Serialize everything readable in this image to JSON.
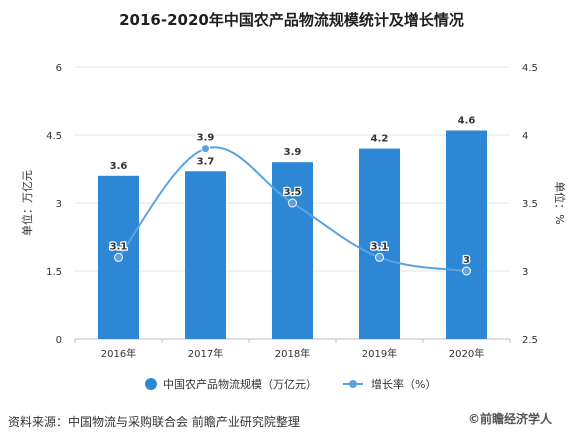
{
  "page": {
    "title": "2016-2020年中国农产品物流规模统计及增长情况",
    "source": "资料来源：中国物流与采购联合会 前瞻产业研究院整理",
    "brand": "©前瞻经济学人"
  },
  "chart_data": {
    "type": "bar",
    "title": "2016-2020年中国农产品物流规模统计及增长情况",
    "categories": [
      "2016年",
      "2017年",
      "2018年",
      "2019年",
      "2020年"
    ],
    "series": [
      {
        "name": "中国农产品物流规模（万亿元）",
        "type": "bar",
        "axis": "left",
        "values": [
          3.6,
          3.7,
          3.9,
          4.2,
          4.6
        ],
        "labels": [
          "3.6",
          "3.7",
          "3.9",
          "4.2",
          "4.6"
        ],
        "color": "#2e87d4"
      },
      {
        "name": "增长率（%）",
        "type": "line",
        "axis": "right",
        "values": [
          3.1,
          3.9,
          3.5,
          3.1,
          3.0
        ],
        "labels": [
          "3.1",
          "3.9",
          "3.5",
          "3.1",
          "3"
        ],
        "color": "#5ba3e0"
      }
    ],
    "y_left": {
      "label": "单位：万亿元",
      "min": 0,
      "max": 6,
      "ticks": [
        0,
        1.5,
        3,
        4.5,
        6
      ],
      "tick_labels": [
        "0",
        "1.5",
        "3",
        "4.5",
        "6"
      ]
    },
    "y_right": {
      "label": "单位：%",
      "min": 2.5,
      "max": 4.5,
      "ticks": [
        2.5,
        3,
        3.5,
        4,
        4.5
      ],
      "tick_labels": [
        "2.5",
        "3",
        "3.5",
        "4",
        "4.5"
      ]
    },
    "grid": true,
    "legend_position": "bottom"
  }
}
